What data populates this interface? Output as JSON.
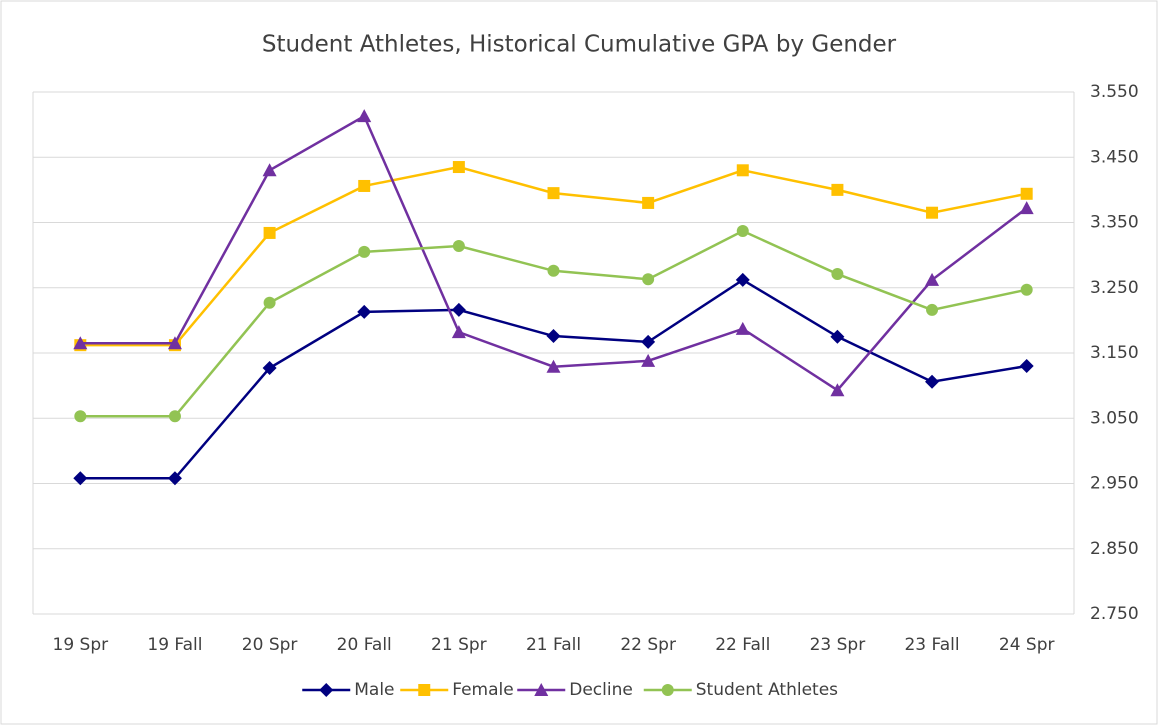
{
  "chart_data": {
    "type": "line",
    "title": "Student Athletes, Historical Cumulative GPA by Gender",
    "categories": [
      "19 Spr",
      "19 Fall",
      "20 Spr",
      "20 Fall",
      "21 Spr",
      "21 Fall",
      "22 Spr",
      "22 Fall",
      "23 Spr",
      "23 Fall",
      "24 Spr"
    ],
    "series": [
      {
        "name": "Male",
        "color": "#000080",
        "marker": "diamond",
        "values": [
          2.958,
          2.958,
          3.127,
          3.213,
          3.216,
          3.176,
          3.167,
          3.262,
          3.175,
          3.106,
          3.13
        ]
      },
      {
        "name": "Female",
        "color": "#ffc000",
        "marker": "square",
        "values": [
          3.162,
          3.162,
          3.334,
          3.406,
          3.435,
          3.395,
          3.38,
          3.43,
          3.4,
          3.365,
          3.394
        ]
      },
      {
        "name": "Decline",
        "color": "#7030a0",
        "marker": "triangle",
        "values": [
          3.165,
          3.165,
          3.43,
          3.513,
          3.182,
          3.129,
          3.138,
          3.187,
          3.093,
          3.262,
          3.372
        ]
      },
      {
        "name": "Student Athletes",
        "color": "#92c353",
        "marker": "circle",
        "values": [
          3.053,
          3.053,
          3.227,
          3.305,
          3.314,
          3.276,
          3.263,
          3.337,
          3.271,
          3.216,
          3.247
        ]
      }
    ],
    "ylim": [
      2.75,
      3.55
    ],
    "yticks": [
      {
        "value": 2.75,
        "label": "2.750"
      },
      {
        "value": 2.85,
        "label": "2.850"
      },
      {
        "value": 2.95,
        "label": "2.950"
      },
      {
        "value": 3.05,
        "label": "3.050"
      },
      {
        "value": 3.15,
        "label": "3.150"
      },
      {
        "value": 3.25,
        "label": "3.250"
      },
      {
        "value": 3.35,
        "label": "3.350"
      },
      {
        "value": 3.45,
        "label": "3.450"
      },
      {
        "value": 3.55,
        "label": "3.550"
      }
    ],
    "y_axis_side": "right",
    "grid": true,
    "legend": "bottom"
  }
}
